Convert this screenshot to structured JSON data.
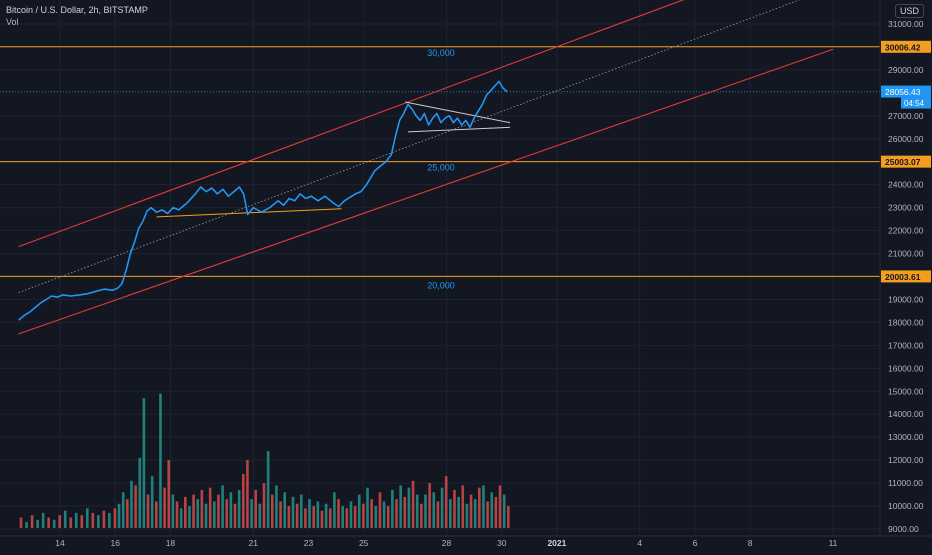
{
  "header": {
    "title": "Bitcoin / U.S. Dollar, 2h, BITSTAMP",
    "volume_label": "Vol"
  },
  "currency": "USD",
  "colors": {
    "background": "#131722",
    "grid": "#1f2330",
    "price_line": "#2196f3",
    "channel": "#e53935",
    "level": "#f59d1e",
    "mid_channel": "#9aa0ae",
    "vol_up": "#26a69a",
    "vol_down": "#ef5350",
    "axis_text": "#b2b5be"
  },
  "chart_data": {
    "type": "line",
    "symbol": "BTCUSD",
    "interval": "2h",
    "y_axis_ticks": [
      9000,
      10000,
      11000,
      12000,
      13000,
      14000,
      15000,
      16000,
      17000,
      18000,
      19000,
      20000,
      21000,
      22000,
      23000,
      24000,
      25000,
      26000,
      27000,
      28000,
      29000,
      30000,
      31000
    ],
    "y_axis_tick_labels": [
      "9000.00",
      "10000.00",
      "11000.00",
      "12000.00",
      "13000.00",
      "14000.00",
      "15000.00",
      "16000.00",
      "17000.00",
      "18000.00",
      "19000.00",
      "20000.00",
      "21000.00",
      "22000.00",
      "23000.00",
      "24000.00",
      "25000.00",
      "26000.00",
      "27000.00",
      "28000.00",
      "29000.00",
      "30000.00",
      "31000.00"
    ],
    "x_axis_ticks": [
      {
        "label": "14",
        "day": 14
      },
      {
        "label": "16",
        "day": 16
      },
      {
        "label": "18",
        "day": 18
      },
      {
        "label": "21",
        "day": 21
      },
      {
        "label": "23",
        "day": 23
      },
      {
        "label": "25",
        "day": 25
      },
      {
        "label": "28",
        "day": 28
      },
      {
        "label": "30",
        "day": 30
      },
      {
        "label": "2021",
        "day": 32,
        "bold": true
      },
      {
        "label": "4",
        "day": 35
      },
      {
        "label": "6",
        "day": 37
      },
      {
        "label": "8",
        "day": 39
      },
      {
        "label": "11",
        "day": 42
      }
    ],
    "price_series": [
      [
        12.5,
        18100
      ],
      [
        12.7,
        18300
      ],
      [
        12.9,
        18450
      ],
      [
        13.1,
        18650
      ],
      [
        13.3,
        18850
      ],
      [
        13.5,
        19000
      ],
      [
        13.7,
        19150
      ],
      [
        13.9,
        19100
      ],
      [
        14.1,
        19200
      ],
      [
        14.4,
        19150
      ],
      [
        14.7,
        19200
      ],
      [
        15.0,
        19250
      ],
      [
        15.3,
        19350
      ],
      [
        15.6,
        19450
      ],
      [
        15.9,
        19400
      ],
      [
        16.1,
        19500
      ],
      [
        16.25,
        19700
      ],
      [
        16.4,
        20300
      ],
      [
        16.55,
        21000
      ],
      [
        16.7,
        21500
      ],
      [
        16.85,
        22100
      ],
      [
        17.0,
        22400
      ],
      [
        17.15,
        22850
      ],
      [
        17.3,
        23000
      ],
      [
        17.5,
        22800
      ],
      [
        17.7,
        22900
      ],
      [
        17.9,
        22750
      ],
      [
        18.1,
        23000
      ],
      [
        18.3,
        22900
      ],
      [
        18.6,
        23200
      ],
      [
        18.9,
        23600
      ],
      [
        19.1,
        23900
      ],
      [
        19.3,
        23700
      ],
      [
        19.5,
        23850
      ],
      [
        19.7,
        23600
      ],
      [
        19.9,
        23800
      ],
      [
        20.1,
        23500
      ],
      [
        20.3,
        23700
      ],
      [
        20.5,
        23900
      ],
      [
        20.65,
        23600
      ],
      [
        20.8,
        22700
      ],
      [
        21.0,
        23000
      ],
      [
        21.3,
        22800
      ],
      [
        21.6,
        23000
      ],
      [
        21.9,
        23300
      ],
      [
        22.1,
        23100
      ],
      [
        22.3,
        23400
      ],
      [
        22.5,
        23300
      ],
      [
        22.7,
        23600
      ],
      [
        22.9,
        23400
      ],
      [
        23.1,
        23500
      ],
      [
        23.35,
        23300
      ],
      [
        23.6,
        23500
      ],
      [
        23.9,
        23200
      ],
      [
        24.1,
        23050
      ],
      [
        24.3,
        23300
      ],
      [
        24.5,
        23450
      ],
      [
        24.7,
        23600
      ],
      [
        24.9,
        23700
      ],
      [
        25.1,
        24000
      ],
      [
        25.25,
        24300
      ],
      [
        25.4,
        24600
      ],
      [
        25.6,
        24800
      ],
      [
        25.8,
        25000
      ],
      [
        26.0,
        25300
      ],
      [
        26.15,
        26100
      ],
      [
        26.3,
        26800
      ],
      [
        26.45,
        27100
      ],
      [
        26.6,
        27500
      ],
      [
        26.75,
        27300
      ],
      [
        26.9,
        27000
      ],
      [
        27.05,
        26800
      ],
      [
        27.2,
        27100
      ],
      [
        27.35,
        26600
      ],
      [
        27.5,
        26900
      ],
      [
        27.65,
        27100
      ],
      [
        27.8,
        26700
      ],
      [
        27.95,
        26900
      ],
      [
        28.1,
        27000
      ],
      [
        28.25,
        26700
      ],
      [
        28.4,
        26900
      ],
      [
        28.55,
        26600
      ],
      [
        28.7,
        26800
      ],
      [
        28.85,
        26500
      ],
      [
        29.0,
        26900
      ],
      [
        29.15,
        27200
      ],
      [
        29.3,
        27500
      ],
      [
        29.45,
        27900
      ],
      [
        29.6,
        28100
      ],
      [
        29.75,
        28300
      ],
      [
        29.9,
        28500
      ],
      [
        30.05,
        28200
      ],
      [
        30.2,
        28056
      ]
    ],
    "volume_range": [
      9000,
      15000
    ],
    "volume_series": [
      [
        12.6,
        9500,
        "d"
      ],
      [
        12.8,
        9300,
        "u"
      ],
      [
        13.0,
        9600,
        "d"
      ],
      [
        13.2,
        9400,
        "u"
      ],
      [
        13.4,
        9700,
        "u"
      ],
      [
        13.6,
        9500,
        "d"
      ],
      [
        13.8,
        9400,
        "u"
      ],
      [
        14.0,
        9600,
        "d"
      ],
      [
        14.2,
        9800,
        "u"
      ],
      [
        14.4,
        9500,
        "d"
      ],
      [
        14.6,
        9700,
        "u"
      ],
      [
        14.8,
        9600,
        "d"
      ],
      [
        15.0,
        9900,
        "u"
      ],
      [
        15.2,
        9700,
        "d"
      ],
      [
        15.4,
        9600,
        "u"
      ],
      [
        15.6,
        9800,
        "d"
      ],
      [
        15.8,
        9700,
        "u"
      ],
      [
        16.0,
        9900,
        "d"
      ],
      [
        16.15,
        10100,
        "u"
      ],
      [
        16.3,
        10600,
        "u"
      ],
      [
        16.45,
        10300,
        "d"
      ],
      [
        16.6,
        11100,
        "u"
      ],
      [
        16.75,
        10900,
        "d"
      ],
      [
        16.9,
        12100,
        "u"
      ],
      [
        17.05,
        14700,
        "u"
      ],
      [
        17.2,
        10500,
        "d"
      ],
      [
        17.35,
        11300,
        "u"
      ],
      [
        17.5,
        10200,
        "d"
      ],
      [
        17.65,
        14900,
        "u"
      ],
      [
        17.8,
        10800,
        "d"
      ],
      [
        17.95,
        12000,
        "d"
      ],
      [
        18.1,
        10500,
        "u"
      ],
      [
        18.25,
        10200,
        "d"
      ],
      [
        18.4,
        9900,
        "u"
      ],
      [
        18.55,
        10400,
        "d"
      ],
      [
        18.7,
        10000,
        "u"
      ],
      [
        18.85,
        10500,
        "d"
      ],
      [
        19.0,
        10300,
        "u"
      ],
      [
        19.15,
        10700,
        "d"
      ],
      [
        19.3,
        10100,
        "u"
      ],
      [
        19.45,
        10800,
        "d"
      ],
      [
        19.6,
        10200,
        "u"
      ],
      [
        19.75,
        10500,
        "d"
      ],
      [
        19.9,
        10900,
        "u"
      ],
      [
        20.05,
        10300,
        "d"
      ],
      [
        20.2,
        10600,
        "u"
      ],
      [
        20.35,
        10100,
        "d"
      ],
      [
        20.5,
        10700,
        "u"
      ],
      [
        20.65,
        11400,
        "d"
      ],
      [
        20.8,
        12000,
        "d"
      ],
      [
        20.95,
        10300,
        "u"
      ],
      [
        21.1,
        10700,
        "d"
      ],
      [
        21.25,
        10100,
        "u"
      ],
      [
        21.4,
        11000,
        "d"
      ],
      [
        21.55,
        12400,
        "u"
      ],
      [
        21.7,
        10500,
        "d"
      ],
      [
        21.85,
        10900,
        "u"
      ],
      [
        22.0,
        10200,
        "d"
      ],
      [
        22.15,
        10600,
        "u"
      ],
      [
        22.3,
        10000,
        "d"
      ],
      [
        22.45,
        10400,
        "u"
      ],
      [
        22.6,
        10100,
        "d"
      ],
      [
        22.75,
        10500,
        "u"
      ],
      [
        22.9,
        9900,
        "d"
      ],
      [
        23.05,
        10300,
        "u"
      ],
      [
        23.2,
        10000,
        "d"
      ],
      [
        23.35,
        10200,
        "u"
      ],
      [
        23.5,
        9800,
        "d"
      ],
      [
        23.65,
        10100,
        "u"
      ],
      [
        23.8,
        9900,
        "d"
      ],
      [
        23.95,
        10600,
        "u"
      ],
      [
        24.1,
        10300,
        "d"
      ],
      [
        24.25,
        10000,
        "u"
      ],
      [
        24.4,
        9900,
        "d"
      ],
      [
        24.55,
        10200,
        "u"
      ],
      [
        24.7,
        10000,
        "d"
      ],
      [
        24.85,
        10500,
        "u"
      ],
      [
        25.0,
        10100,
        "d"
      ],
      [
        25.15,
        10800,
        "u"
      ],
      [
        25.3,
        10300,
        "d"
      ],
      [
        25.45,
        10000,
        "u"
      ],
      [
        25.6,
        10600,
        "d"
      ],
      [
        25.75,
        10200,
        "u"
      ],
      [
        25.9,
        10000,
        "d"
      ],
      [
        26.05,
        10700,
        "u"
      ],
      [
        26.2,
        10300,
        "d"
      ],
      [
        26.35,
        10900,
        "u"
      ],
      [
        26.5,
        10400,
        "d"
      ],
      [
        26.65,
        10800,
        "u"
      ],
      [
        26.8,
        11100,
        "d"
      ],
      [
        26.95,
        10500,
        "u"
      ],
      [
        27.1,
        10100,
        "d"
      ],
      [
        27.25,
        10500,
        "u"
      ],
      [
        27.4,
        11000,
        "d"
      ],
      [
        27.55,
        10600,
        "u"
      ],
      [
        27.7,
        10200,
        "d"
      ],
      [
        27.85,
        10800,
        "u"
      ],
      [
        28.0,
        11300,
        "d"
      ],
      [
        28.15,
        10300,
        "u"
      ],
      [
        28.3,
        10700,
        "d"
      ],
      [
        28.45,
        10400,
        "u"
      ],
      [
        28.6,
        10900,
        "d"
      ],
      [
        28.75,
        10100,
        "u"
      ],
      [
        28.9,
        10500,
        "d"
      ],
      [
        29.05,
        10300,
        "u"
      ],
      [
        29.2,
        10800,
        "d"
      ],
      [
        29.35,
        10900,
        "u"
      ],
      [
        29.5,
        10200,
        "d"
      ],
      [
        29.65,
        10600,
        "u"
      ],
      [
        29.8,
        10400,
        "d"
      ],
      [
        29.95,
        10900,
        "d"
      ],
      [
        30.1,
        10500,
        "u"
      ],
      [
        30.25,
        10000,
        "d"
      ]
    ],
    "horizontal_levels": [
      {
        "price": 30006.42,
        "label": "30006.42",
        "annotation": "30,000"
      },
      {
        "price": 25003.07,
        "label": "25003.07",
        "annotation": "25,000"
      },
      {
        "price": 20003.61,
        "label": "20003.61",
        "annotation": "20,000"
      }
    ],
    "last_price": {
      "price": 28056.43,
      "label": "28056.43",
      "countdown": "04:54"
    },
    "channel": {
      "upper": [
        [
          12.5,
          21300
        ],
        [
          37.8,
          32600
        ]
      ],
      "middle": [
        [
          12.5,
          19300
        ],
        [
          42.0,
          32600
        ]
      ],
      "lower": [
        [
          12.5,
          17500
        ],
        [
          42.0,
          29900
        ]
      ]
    },
    "trendlines": [
      {
        "points": [
          [
            17.5,
            22600
          ],
          [
            24.2,
            22950
          ]
        ],
        "color": "level"
      },
      {
        "points": [
          [
            26.5,
            27600
          ],
          [
            30.3,
            26700
          ]
        ],
        "color": "price"
      },
      {
        "points": [
          [
            26.6,
            26300
          ],
          [
            30.3,
            26500
          ]
        ],
        "color": "price"
      }
    ]
  }
}
